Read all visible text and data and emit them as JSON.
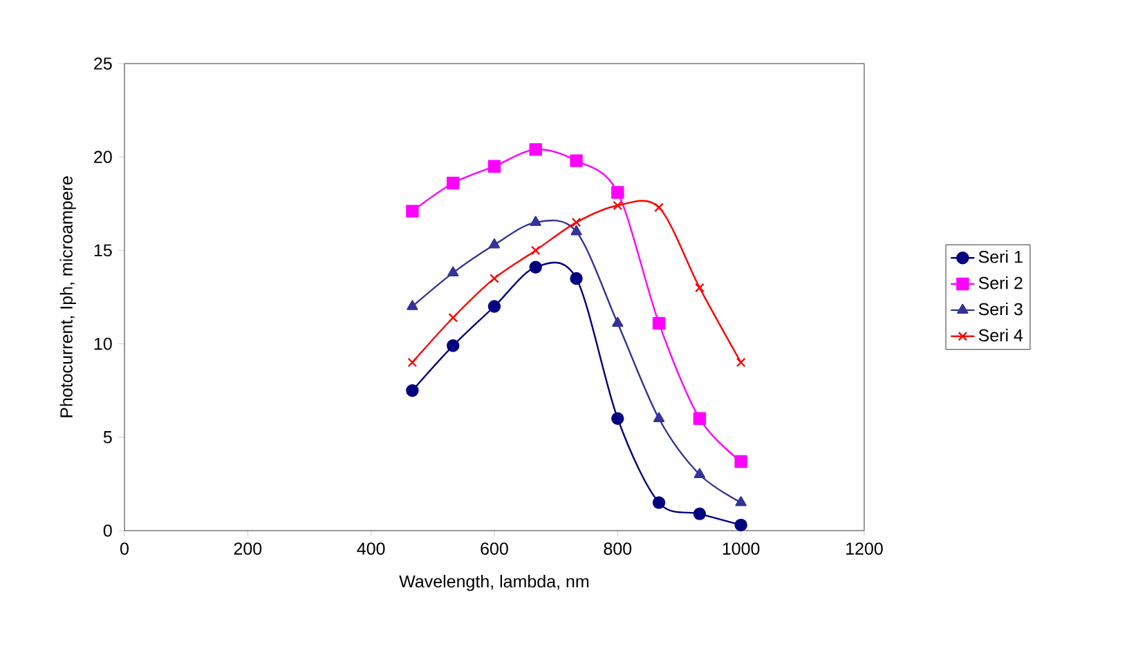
{
  "chart_data": {
    "type": "line",
    "xlabel": "Wavelength, lambda, nm",
    "ylabel": "Photocurrent, Iph, microampere",
    "x": [
      467,
      533,
      600,
      667,
      733,
      800,
      867,
      933,
      1000
    ],
    "series": [
      {
        "name": "Seri 1",
        "color": "#000080",
        "marker": "circle",
        "values": [
          7.5,
          9.9,
          12,
          14.1,
          13.5,
          6,
          1.5,
          0.9,
          0.3
        ]
      },
      {
        "name": "Seri 2",
        "color": "#ff00ff",
        "marker": "square",
        "values": [
          17.1,
          18.6,
          19.5,
          20.4,
          19.8,
          18.1,
          11.1,
          6,
          3.7
        ]
      },
      {
        "name": "Seri 3",
        "color": "#333399",
        "marker": "triangle",
        "values": [
          12,
          13.8,
          15.3,
          16.5,
          16,
          11.1,
          6,
          3,
          1.5
        ]
      },
      {
        "name": "Seri 4",
        "color": "#ff0000",
        "marker": "cross",
        "values": [
          9,
          11.4,
          13.5,
          15,
          16.5,
          17.4,
          17.3,
          13,
          9
        ]
      }
    ],
    "xlim": [
      0,
      1200
    ],
    "ylim": [
      0,
      25
    ],
    "xticks": [
      0,
      200,
      400,
      600,
      800,
      1000,
      1200
    ],
    "yticks": [
      0,
      5,
      10,
      15,
      20,
      25
    ],
    "grid": false,
    "legend": "right",
    "line_style": "solid"
  }
}
